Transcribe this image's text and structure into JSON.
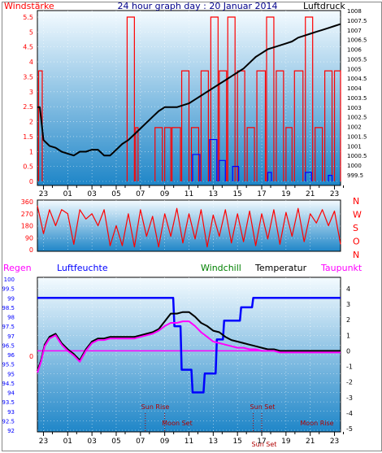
{
  "colors": {
    "wind": "#ff0000",
    "wind_gust": "#0000ff",
    "pressure": "#000000",
    "rain": "#ff00ff",
    "humidity": "#0000ff",
    "windchill": "#008000",
    "temperature": "#000000",
    "dewpoint": "#ff00ff",
    "sky_top": "#f4fbff",
    "sky_bottom": "#1f86c8"
  },
  "chart_data": [
    {
      "type": "line",
      "panel": "wind-pressure",
      "title": "24 hour graph day : 20 Januar 2014",
      "left_label": "Windstärke",
      "right_label": "Luftdruck",
      "x_ticks": [
        "23",
        "01",
        "03",
        "05",
        "07",
        "09",
        "11",
        "13",
        "15",
        "17",
        "19",
        "21",
        "23"
      ],
      "y_left_ticks": [
        "5.5",
        "5",
        "4.5",
        "4",
        "3.5",
        "3",
        "2.5",
        "2",
        "1.5",
        "1",
        "0.5",
        "0"
      ],
      "y_left_range": [
        0,
        5.5
      ],
      "y_right_ticks": [
        "1008",
        "1007.5",
        "1007",
        "1006.5",
        "1006",
        "1005.5",
        "1005",
        "1004.5",
        "1004",
        "1003.5",
        "1003",
        "1002.5",
        "1002",
        "1001.5",
        "1001",
        "1000.5",
        "1000",
        "999.5"
      ],
      "y_right_range": [
        999.5,
        1008
      ],
      "series": [
        {
          "name": "Luftdruck",
          "axis": "right",
          "x": [
            22.5,
            22.7,
            23.0,
            23.5,
            24.0,
            24.5,
            25.0,
            25.5,
            26.0,
            26.5,
            27.0,
            27.5,
            28.0,
            28.5,
            29.0,
            29.5,
            30.0,
            30.5,
            31.0,
            31.5,
            32.0,
            32.5,
            33.0,
            33.5,
            34.0,
            34.5,
            35.0,
            35.5,
            36.0,
            36.5,
            37.0,
            37.5,
            38.0,
            38.5,
            39.0,
            39.5,
            40.0,
            40.5,
            41.0,
            41.5,
            42.0,
            42.5,
            43.0,
            43.5,
            44.0,
            44.5,
            45.0,
            45.5,
            46.0,
            46.5,
            47.0,
            47.5
          ],
          "y": [
            1003.0,
            1003.0,
            1001.3,
            1001.0,
            1000.9,
            1000.7,
            1000.6,
            1000.5,
            1000.7,
            1000.7,
            1000.8,
            1000.8,
            1000.5,
            1000.5,
            1000.8,
            1001.1,
            1001.3,
            1001.6,
            1001.9,
            1002.2,
            1002.5,
            1002.8,
            1003.0,
            1003.0,
            1003.0,
            1003.1,
            1003.2,
            1003.4,
            1003.6,
            1003.8,
            1004.0,
            1004.2,
            1004.4,
            1004.6,
            1004.8,
            1005.0,
            1005.3,
            1005.6,
            1005.8,
            1006.0,
            1006.1,
            1006.2,
            1006.3,
            1006.4,
            1006.6,
            1006.7,
            1006.8,
            1006.9,
            1007.0,
            1007.1,
            1007.2,
            1007.3
          ]
        }
      ],
      "wind_bars": [
        {
          "start": 22.6,
          "end": 22.9,
          "value": 3.7
        },
        {
          "start": 29.9,
          "end": 30.5,
          "value": 5.5
        },
        {
          "start": 30.6,
          "end": 30.8,
          "value": 1.8
        },
        {
          "start": 32.2,
          "end": 32.8,
          "value": 1.8
        },
        {
          "start": 33.0,
          "end": 33.5,
          "value": 1.8
        },
        {
          "start": 33.6,
          "end": 34.3,
          "value": 1.8
        },
        {
          "start": 34.4,
          "end": 35.0,
          "value": 3.7
        },
        {
          "start": 35.2,
          "end": 35.8,
          "value": 1.8
        },
        {
          "start": 36.0,
          "end": 36.6,
          "value": 3.7
        },
        {
          "start": 36.8,
          "end": 37.4,
          "value": 5.5
        },
        {
          "start": 37.5,
          "end": 38.1,
          "value": 3.7
        },
        {
          "start": 38.2,
          "end": 38.8,
          "value": 5.5
        },
        {
          "start": 39.0,
          "end": 39.6,
          "value": 3.7
        },
        {
          "start": 39.8,
          "end": 40.4,
          "value": 1.8
        },
        {
          "start": 40.6,
          "end": 41.3,
          "value": 3.7
        },
        {
          "start": 41.4,
          "end": 42.0,
          "value": 5.5
        },
        {
          "start": 42.2,
          "end": 42.8,
          "value": 3.7
        },
        {
          "start": 43.0,
          "end": 43.5,
          "value": 1.8
        },
        {
          "start": 43.7,
          "end": 44.4,
          "value": 3.7
        },
        {
          "start": 44.6,
          "end": 45.2,
          "value": 5.5
        },
        {
          "start": 45.4,
          "end": 46.0,
          "value": 1.8
        },
        {
          "start": 46.2,
          "end": 46.8,
          "value": 3.7
        },
        {
          "start": 47.0,
          "end": 47.5,
          "value": 3.7
        }
      ],
      "gust_bars": [
        {
          "start": 35.3,
          "end": 35.9,
          "value": 0.9
        },
        {
          "start": 36.7,
          "end": 37.3,
          "value": 1.4
        },
        {
          "start": 37.5,
          "end": 38.0,
          "value": 0.7
        },
        {
          "start": 38.6,
          "end": 39.1,
          "value": 0.5
        },
        {
          "start": 41.5,
          "end": 41.8,
          "value": 0.3
        },
        {
          "start": 44.6,
          "end": 45.1,
          "value": 0.3
        },
        {
          "start": 46.5,
          "end": 46.8,
          "value": 0.2
        }
      ]
    },
    {
      "type": "line",
      "panel": "wind-direction",
      "x_ticks": [
        "23",
        "01",
        "03",
        "05",
        "07",
        "09",
        "11",
        "13",
        "15",
        "17",
        "19",
        "21",
        "23"
      ],
      "y_left_ticks": [
        "360",
        "270",
        "180",
        "90",
        "0"
      ],
      "y_left_range": [
        0,
        360
      ],
      "y_right_ticks": [
        "N",
        "W",
        "S",
        "O",
        "N"
      ],
      "series": [
        {
          "name": "Windrichtung",
          "x": [
            22.5,
            23.0,
            23.5,
            24.0,
            24.5,
            25.0,
            25.5,
            26.0,
            26.5,
            27.0,
            27.5,
            28.0,
            28.5,
            29.0,
            29.5,
            30.0,
            30.5,
            31.0,
            31.5,
            32.0,
            32.5,
            33.0,
            33.5,
            34.0,
            34.5,
            35.0,
            35.5,
            36.0,
            36.5,
            37.0,
            37.5,
            38.0,
            38.5,
            39.0,
            39.5,
            40.0,
            40.5,
            41.0,
            41.5,
            42.0,
            42.5,
            43.0,
            43.5,
            44.0,
            44.5,
            45.0,
            45.5,
            46.0,
            46.5,
            47.0,
            47.5
          ],
          "y": [
            330,
            120,
            300,
            180,
            300,
            270,
            40,
            300,
            230,
            270,
            180,
            300,
            30,
            180,
            30,
            270,
            20,
            300,
            100,
            250,
            20,
            270,
            100,
            310,
            50,
            270,
            80,
            300,
            20,
            260,
            100,
            300,
            50,
            270,
            60,
            290,
            30,
            270,
            80,
            300,
            40,
            280,
            100,
            310,
            60,
            270,
            200,
            300,
            180,
            290,
            40
          ]
        }
      ]
    },
    {
      "type": "line",
      "panel": "temperature-humidity",
      "legend": [
        "Regen",
        "Luftfeuchte",
        "Windchill",
        "Temperatur",
        "Taupunkt"
      ],
      "x_ticks": [
        "23",
        "01",
        "03",
        "05",
        "07",
        "09",
        "11",
        "13",
        "15",
        "17",
        "19",
        "21",
        "23"
      ],
      "y_left_ticks": [
        "100",
        "99.5",
        "99",
        "98.5",
        "98",
        "97.5",
        "97",
        "96.5",
        "96",
        "95.5",
        "95",
        "94.5",
        "94",
        "93.5",
        "93",
        "92.5",
        "92"
      ],
      "y_left_range": [
        92,
        100
      ],
      "y_right_ticks": [
        "4",
        "3",
        "2",
        "1",
        "0",
        "-1",
        "-2",
        "-3",
        "-4",
        "-5"
      ],
      "y_right_range": [
        -5,
        4
      ],
      "rain_zero_label": "0",
      "annotations": [
        "Sun Rise",
        "Moon Set",
        "Sun Set",
        "Sun Set",
        "Moon Rise"
      ],
      "series": [
        {
          "name": "Luftfeuchte",
          "axis": "left",
          "x": [
            22.5,
            33.7,
            33.8,
            34.3,
            34.4,
            35.2,
            35.3,
            36.2,
            36.3,
            37.2,
            37.3,
            37.8,
            37.9,
            39.2,
            39.3,
            40.2,
            40.3,
            47.5
          ],
          "y": [
            99,
            99,
            97.5,
            97.5,
            95.2,
            95.2,
            94,
            94,
            95,
            95,
            96.8,
            96.8,
            97.8,
            97.8,
            98.5,
            98.5,
            99,
            99
          ]
        },
        {
          "name": "Temperatur",
          "axis": "right",
          "x": [
            22.5,
            22.8,
            23.1,
            23.5,
            24.0,
            24.5,
            25.0,
            25.5,
            26.0,
            26.5,
            27.0,
            27.5,
            28.0,
            28.5,
            29.0,
            29.5,
            30.0,
            30.5,
            31.0,
            31.5,
            32.0,
            32.5,
            33.0,
            33.5,
            34.0,
            34.5,
            35.0,
            35.5,
            36.0,
            36.5,
            37.0,
            37.5,
            38.0,
            38.5,
            39.0,
            39.5,
            40.0,
            40.5,
            41.0,
            41.5,
            42.0,
            42.5,
            43.0,
            43.5,
            44.0,
            44.5,
            45.0,
            45.5,
            46.0,
            46.5,
            47.0,
            47.5
          ],
          "y": [
            -1.3,
            -0.6,
            0.4,
            0.9,
            1.1,
            0.5,
            0.1,
            -0.2,
            -0.6,
            0.1,
            0.6,
            0.8,
            0.8,
            0.9,
            0.9,
            0.9,
            0.9,
            0.9,
            1.0,
            1.1,
            1.2,
            1.4,
            1.9,
            2.4,
            2.4,
            2.5,
            2.5,
            2.2,
            1.8,
            1.6,
            1.3,
            1.2,
            0.9,
            0.7,
            0.6,
            0.5,
            0.4,
            0.3,
            0.2,
            0.1,
            0.1,
            0.0,
            0.0,
            0.0,
            0.0,
            0.0,
            0.0,
            0.0,
            0.0,
            0.0,
            0.0,
            0.0
          ]
        },
        {
          "name": "Windchill",
          "axis": "right",
          "x": [
            22.5,
            22.8,
            23.1,
            23.5,
            24.0,
            24.5,
            25.0,
            25.5,
            26.0,
            26.5,
            27.0,
            27.5,
            28.0,
            28.5,
            29.0,
            29.5,
            30.0,
            30.5,
            31.0,
            31.5,
            32.0,
            32.5,
            33.0,
            33.5,
            34.0,
            34.5,
            35.0,
            35.5,
            36.0,
            36.5,
            37.0,
            37.5,
            38.0,
            38.5,
            39.0,
            39.5,
            40.0,
            40.5,
            41.0,
            41.5,
            42.0,
            42.5,
            43.0,
            43.5,
            44.0,
            44.5,
            45.0,
            45.5,
            46.0,
            46.5,
            47.0,
            47.5
          ],
          "y": [
            -1.3,
            -0.6,
            0.4,
            0.9,
            1.1,
            0.5,
            0.1,
            -0.2,
            -0.6,
            0.1,
            0.6,
            0.8,
            0.8,
            0.9,
            0.9,
            0.9,
            0.9,
            0.9,
            1.0,
            1.1,
            1.2,
            1.4,
            1.9,
            2.4,
            2.4,
            2.5,
            2.5,
            2.2,
            1.8,
            1.6,
            1.3,
            1.2,
            0.9,
            0.7,
            0.6,
            0.5,
            0.4,
            0.3,
            0.2,
            0.1,
            0.1,
            0.0,
            0.0,
            0.0,
            0.0,
            0.0,
            0.0,
            0.0,
            0.0,
            0.0,
            0.0,
            0.0
          ]
        },
        {
          "name": "Taupunkt",
          "axis": "right",
          "x": [
            22.5,
            22.8,
            23.1,
            23.5,
            24.0,
            24.5,
            25.0,
            25.5,
            26.0,
            26.5,
            27.0,
            27.5,
            28.0,
            28.5,
            29.0,
            29.5,
            30.0,
            30.5,
            31.0,
            31.5,
            32.0,
            32.5,
            33.0,
            33.5,
            34.0,
            34.5,
            35.0,
            35.5,
            36.0,
            36.5,
            37.0,
            37.5,
            38.0,
            38.5,
            39.0,
            39.5,
            40.0,
            40.5,
            41.0,
            41.5,
            42.0,
            42.5,
            43.0,
            43.5,
            44.0,
            44.5,
            45.0,
            45.5,
            46.0,
            46.5,
            47.0,
            47.5
          ],
          "y": [
            -1.4,
            -0.7,
            0.3,
            0.8,
            1.0,
            0.4,
            0.0,
            -0.3,
            -0.7,
            0.0,
            0.5,
            0.7,
            0.7,
            0.8,
            0.8,
            0.8,
            0.8,
            0.8,
            0.9,
            1.0,
            1.1,
            1.3,
            1.6,
            1.8,
            1.8,
            1.9,
            1.9,
            1.6,
            1.2,
            0.9,
            0.6,
            0.5,
            0.4,
            0.3,
            0.2,
            0.2,
            0.1,
            0.1,
            0.0,
            0.0,
            0.0,
            -0.1,
            -0.1,
            -0.1,
            -0.1,
            -0.1,
            -0.1,
            -0.1,
            -0.1,
            -0.1,
            -0.1,
            -0.1
          ]
        },
        {
          "name": "Regen",
          "axis": "right",
          "x": [
            22.5,
            47.5
          ],
          "y": [
            0,
            0
          ]
        }
      ]
    }
  ]
}
